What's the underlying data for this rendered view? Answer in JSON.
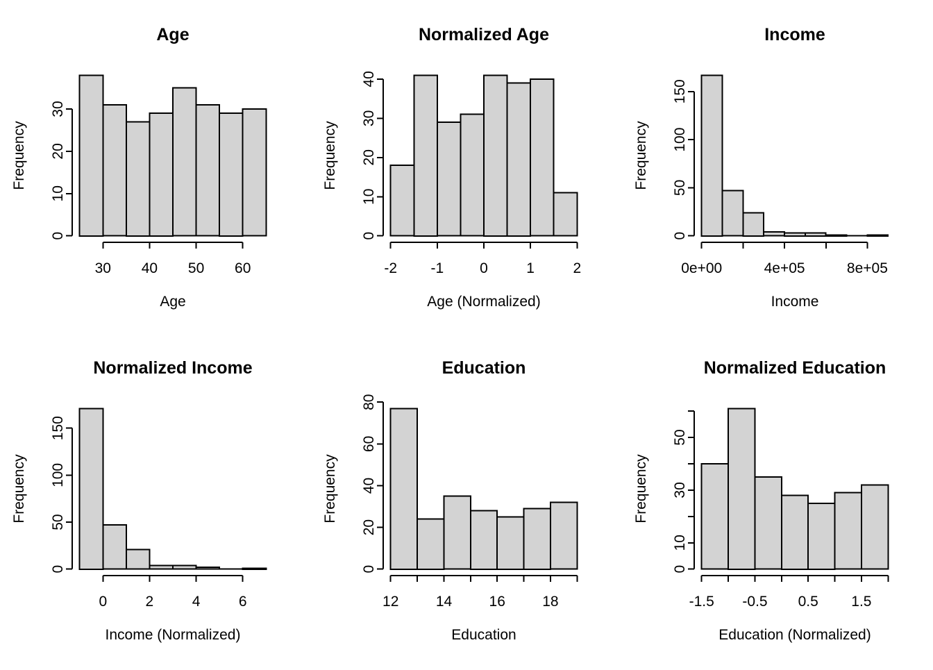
{
  "figure": {
    "layout": {
      "rows": 2,
      "cols": 3
    },
    "colors": {
      "background": "#ffffff",
      "bar_fill": "#d3d3d3",
      "bar_stroke": "#000000",
      "axis_stroke": "#000000",
      "text": "#000000"
    }
  },
  "chart_data": [
    {
      "type": "histogram",
      "title": "Age",
      "xlabel": "Age",
      "ylabel": "Frequency",
      "bin_start": 25,
      "bin_width": 5,
      "counts": [
        38,
        31,
        27,
        29,
        35,
        31,
        29,
        30
      ],
      "xlim": [
        25,
        65
      ],
      "ylim": [
        0,
        38
      ],
      "grid": false,
      "x_ticks": [
        {
          "v": 30,
          "label": "30"
        },
        {
          "v": 40,
          "label": "40"
        },
        {
          "v": 50,
          "label": "50"
        },
        {
          "v": 60,
          "label": "60"
        }
      ],
      "y_ticks": [
        {
          "v": 0,
          "label": "0"
        },
        {
          "v": 10,
          "label": "10"
        },
        {
          "v": 20,
          "label": "20"
        },
        {
          "v": 30,
          "label": "30"
        }
      ]
    },
    {
      "type": "histogram",
      "title": "Normalized Age",
      "xlabel": "Age (Normalized)",
      "ylabel": "Frequency",
      "bin_start": -2,
      "bin_width": 0.5,
      "counts": [
        18,
        41,
        29,
        31,
        41,
        39,
        40,
        11
      ],
      "xlim": [
        -2,
        2
      ],
      "ylim": [
        0,
        41
      ],
      "grid": false,
      "x_ticks": [
        {
          "v": -2,
          "label": "-2"
        },
        {
          "v": -1,
          "label": "-1"
        },
        {
          "v": 0,
          "label": "0"
        },
        {
          "v": 1,
          "label": "1"
        },
        {
          "v": 2,
          "label": "2"
        }
      ],
      "y_ticks": [
        {
          "v": 0,
          "label": "0"
        },
        {
          "v": 10,
          "label": "10"
        },
        {
          "v": 20,
          "label": "20"
        },
        {
          "v": 30,
          "label": "30"
        },
        {
          "v": 40,
          "label": "40"
        }
      ]
    },
    {
      "type": "histogram",
      "title": "Income",
      "xlabel": "Income",
      "ylabel": "Frequency",
      "bin_start": 0,
      "bin_width": 100000,
      "counts": [
        167,
        47,
        24,
        4,
        3,
        3,
        1,
        0,
        1
      ],
      "xlim": [
        0,
        900000
      ],
      "ylim": [
        0,
        167
      ],
      "grid": false,
      "x_ticks": [
        {
          "v": 0,
          "label": "0e+00"
        },
        {
          "v": 200000,
          "label": ""
        },
        {
          "v": 400000,
          "label": "4e+05"
        },
        {
          "v": 600000,
          "label": ""
        },
        {
          "v": 800000,
          "label": "8e+05"
        }
      ],
      "y_ticks": [
        {
          "v": 0,
          "label": "0"
        },
        {
          "v": 50,
          "label": "50"
        },
        {
          "v": 100,
          "label": "100"
        },
        {
          "v": 150,
          "label": "150"
        }
      ]
    },
    {
      "type": "histogram",
      "title": "Normalized Income",
      "xlabel": "Income (Normalized)",
      "ylabel": "Frequency",
      "bin_start": -1,
      "bin_width": 1,
      "counts": [
        171,
        47,
        21,
        4,
        4,
        2,
        0,
        1
      ],
      "xlim": [
        -1,
        7
      ],
      "ylim": [
        0,
        171
      ],
      "grid": false,
      "x_ticks": [
        {
          "v": 0,
          "label": "0"
        },
        {
          "v": 2,
          "label": "2"
        },
        {
          "v": 4,
          "label": "4"
        },
        {
          "v": 6,
          "label": "6"
        }
      ],
      "y_ticks": [
        {
          "v": 0,
          "label": "0"
        },
        {
          "v": 50,
          "label": "50"
        },
        {
          "v": 100,
          "label": "100"
        },
        {
          "v": 150,
          "label": "150"
        }
      ]
    },
    {
      "type": "histogram",
      "title": "Education",
      "xlabel": "Education",
      "ylabel": "Frequency",
      "bin_start": 12,
      "bin_width": 1,
      "counts": [
        77,
        24,
        35,
        28,
        25,
        29,
        32
      ],
      "xlim": [
        12,
        19
      ],
      "ylim": [
        0,
        77
      ],
      "grid": false,
      "x_ticks": [
        {
          "v": 12,
          "label": "12"
        },
        {
          "v": 13,
          "label": ""
        },
        {
          "v": 14,
          "label": "14"
        },
        {
          "v": 15,
          "label": ""
        },
        {
          "v": 16,
          "label": "16"
        },
        {
          "v": 17,
          "label": ""
        },
        {
          "v": 18,
          "label": "18"
        },
        {
          "v": 19,
          "label": ""
        }
      ],
      "y_ticks": [
        {
          "v": 0,
          "label": "0"
        },
        {
          "v": 20,
          "label": "20"
        },
        {
          "v": 40,
          "label": "40"
        },
        {
          "v": 60,
          "label": "60"
        },
        {
          "v": 80,
          "label": "80"
        }
      ]
    },
    {
      "type": "histogram",
      "title": "Normalized Education",
      "xlabel": "Education (Normalized)",
      "ylabel": "Frequency",
      "bin_start": -1.5,
      "bin_width": 0.5,
      "counts": [
        40,
        61,
        35,
        28,
        25,
        29,
        32
      ],
      "xlim": [
        -1.5,
        2
      ],
      "ylim": [
        0,
        61
      ],
      "grid": false,
      "x_ticks": [
        {
          "v": -1.5,
          "label": "-1.5"
        },
        {
          "v": -1,
          "label": ""
        },
        {
          "v": -0.5,
          "label": "-0.5"
        },
        {
          "v": 0,
          "label": ""
        },
        {
          "v": 0.5,
          "label": "0.5"
        },
        {
          "v": 1,
          "label": ""
        },
        {
          "v": 1.5,
          "label": "1.5"
        },
        {
          "v": 2,
          "label": ""
        }
      ],
      "y_ticks": [
        {
          "v": 0,
          "label": "0"
        },
        {
          "v": 10,
          "label": "10"
        },
        {
          "v": 20,
          "label": ""
        },
        {
          "v": 30,
          "label": "30"
        },
        {
          "v": 40,
          "label": ""
        },
        {
          "v": 50,
          "label": "50"
        },
        {
          "v": 60,
          "label": ""
        }
      ]
    }
  ]
}
